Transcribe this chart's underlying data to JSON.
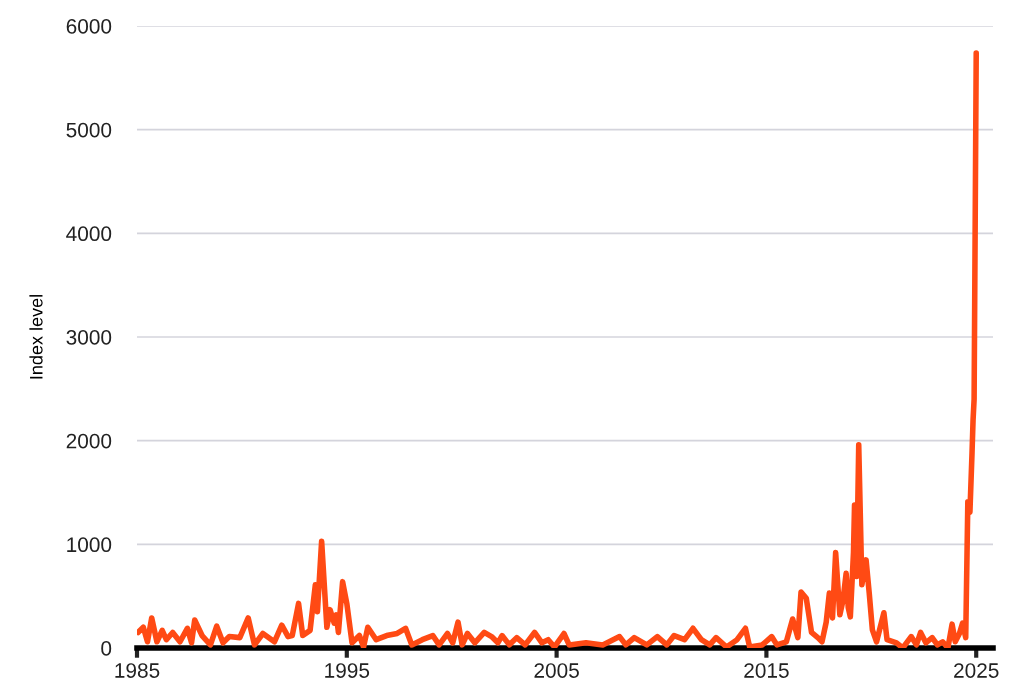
{
  "chart_data": {
    "type": "line",
    "ylabel": "Index level",
    "xlim": [
      1985,
      2025.8
    ],
    "xticks": [
      1985,
      1995,
      2005,
      2015,
      2025
    ],
    "ylim": [
      0,
      6000
    ],
    "yticks": [
      0,
      1000,
      2000,
      3000,
      4000,
      5000,
      6000
    ],
    "grid": "y",
    "marker": "none",
    "line_style": "solid",
    "series": [
      {
        "color": "#ff4a14",
        "x": [
          1985.05,
          1985.3,
          1985.5,
          1985.7,
          1985.95,
          1986.2,
          1986.4,
          1986.7,
          1987.05,
          1987.4,
          1987.6,
          1987.75,
          1988.1,
          1988.5,
          1988.8,
          1989.1,
          1989.4,
          1989.9,
          1990.3,
          1990.6,
          1991.0,
          1991.55,
          1991.9,
          1992.2,
          1992.4,
          1992.7,
          1992.9,
          1993.25,
          1993.5,
          1993.6,
          1993.8,
          1994.05,
          1994.2,
          1994.4,
          1994.5,
          1994.6,
          1994.8,
          1995.0,
          1995.25,
          1995.6,
          1995.8,
          1996.0,
          1996.4,
          1996.9,
          1997.4,
          1997.8,
          1998.1,
          1998.6,
          1999.1,
          1999.4,
          1999.8,
          2000.05,
          2000.3,
          2000.5,
          2000.75,
          2001.1,
          2001.55,
          2001.9,
          2002.2,
          2002.4,
          2002.75,
          2003.1,
          2003.5,
          2003.95,
          2004.3,
          2004.6,
          2004.9,
          2005.35,
          2005.6,
          2006.4,
          2007.2,
          2008.0,
          2008.3,
          2008.7,
          2009.3,
          2009.8,
          2010.25,
          2010.6,
          2011.1,
          2011.5,
          2011.9,
          2012.3,
          2012.6,
          2013.1,
          2013.6,
          2014.0,
          2014.2,
          2014.8,
          2015.25,
          2015.5,
          2015.95,
          2016.25,
          2016.5,
          2016.65,
          2016.9,
          2017.15,
          2017.45,
          2017.65,
          2017.85,
          2018.0,
          2018.15,
          2018.3,
          2018.5,
          2018.65,
          2018.8,
          2018.9,
          2019.0,
          2019.15,
          2019.2,
          2019.3,
          2019.4,
          2019.55,
          2019.75,
          2019.9,
          2020.05,
          2020.25,
          2020.6,
          2020.75,
          2021.2,
          2021.5,
          2021.9,
          2022.15,
          2022.35,
          2022.6,
          2022.9,
          2023.15,
          2023.4,
          2023.65,
          2023.85,
          2024.0,
          2024.2,
          2024.35,
          2024.5,
          2024.6,
          2024.7,
          2024.8,
          2024.85,
          2024.9,
          2025.0
        ],
        "values": [
          150,
          200,
          60,
          290,
          60,
          170,
          80,
          150,
          60,
          190,
          50,
          270,
          120,
          30,
          210,
          50,
          110,
          100,
          290,
          30,
          140,
          60,
          220,
          110,
          120,
          430,
          120,
          170,
          610,
          350,
          1030,
          200,
          370,
          240,
          320,
          150,
          640,
          430,
          50,
          120,
          10,
          200,
          80,
          120,
          140,
          190,
          30,
          80,
          120,
          30,
          140,
          50,
          250,
          30,
          140,
          50,
          150,
          110,
          50,
          120,
          30,
          100,
          30,
          150,
          50,
          80,
          10,
          140,
          30,
          50,
          30,
          110,
          30,
          100,
          30,
          110,
          30,
          120,
          80,
          190,
          80,
          30,
          100,
          10,
          80,
          190,
          10,
          30,
          110,
          30,
          60,
          280,
          100,
          540,
          480,
          150,
          100,
          60,
          250,
          530,
          290,
          920,
          320,
          460,
          720,
          390,
          300,
          920,
          1380,
          690,
          1960,
          610,
          850,
          530,
          175,
          60,
          340,
          80,
          50,
          0,
          110,
          30,
          150,
          50,
          100,
          30,
          60,
          0,
          230,
          60,
          140,
          240,
          100,
          1410,
          1310,
          1880,
          2200,
          2400,
          5740
        ]
      }
    ]
  }
}
